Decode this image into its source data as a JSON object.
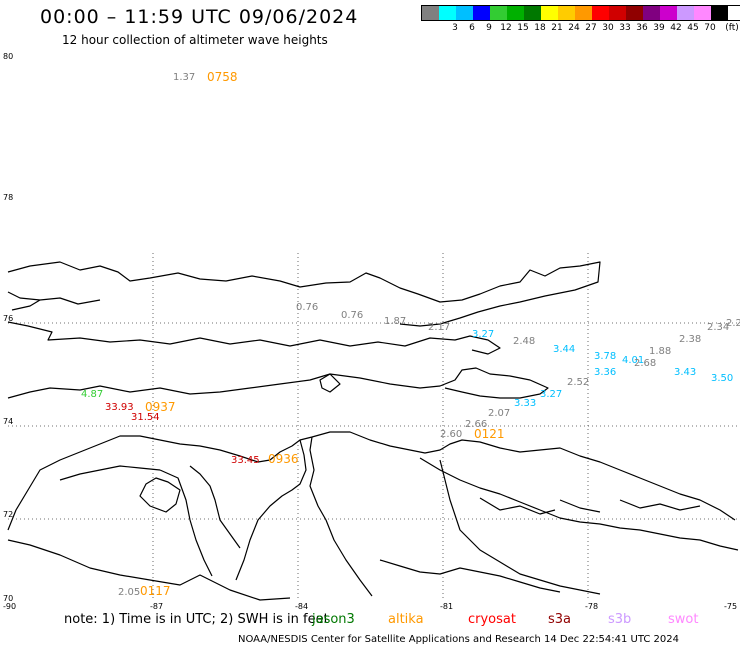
{
  "header": {
    "title": "00:00 – 11:59 UTC 09/06/2024",
    "subtitle": "12 hour collection of altimeter wave heights"
  },
  "legend": {
    "unit": "(ft)",
    "items": [
      {
        "label": "",
        "color": "#808080"
      },
      {
        "label": "3",
        "color": "#00ffff"
      },
      {
        "label": "6",
        "color": "#00bfff"
      },
      {
        "label": "9",
        "color": "#0000ff"
      },
      {
        "label": "12",
        "color": "#33cc33"
      },
      {
        "label": "15",
        "color": "#00b000"
      },
      {
        "label": "18",
        "color": "#007800"
      },
      {
        "label": "21",
        "color": "#ffff00"
      },
      {
        "label": "24",
        "color": "#ffcc00"
      },
      {
        "label": "27",
        "color": "#ff9900"
      },
      {
        "label": "30",
        "color": "#ff0000"
      },
      {
        "label": "33",
        "color": "#d00000"
      },
      {
        "label": "36",
        "color": "#900000"
      },
      {
        "label": "39",
        "color": "#800080"
      },
      {
        "label": "42",
        "color": "#cc00cc"
      },
      {
        "label": "45",
        "color": "#cc99ff"
      },
      {
        "label": "70",
        "color": "#ff88ff"
      },
      {
        "label": "",
        "color": "#000000"
      }
    ]
  },
  "map": {
    "lat_labels": [
      "80",
      "78",
      "76",
      "74",
      "72",
      "70"
    ],
    "lon_labels": [
      "-90",
      "-87",
      "-84",
      "-81",
      "-78",
      "-75"
    ],
    "observations": [
      {
        "text": "1.37",
        "color": "#808080"
      },
      {
        "text": "0.76",
        "color": "#808080"
      },
      {
        "text": "0.76",
        "color": "#808080"
      },
      {
        "text": "1.87",
        "color": "#808080"
      },
      {
        "text": "2.17",
        "color": "#808080"
      },
      {
        "text": "3.27",
        "color": "#00bfff"
      },
      {
        "text": "2.48",
        "color": "#808080"
      },
      {
        "text": "3.44",
        "color": "#00bfff"
      },
      {
        "text": "3.78",
        "color": "#00bfff"
      },
      {
        "text": "4.01",
        "color": "#00bfff"
      },
      {
        "text": "1.88",
        "color": "#808080"
      },
      {
        "text": "2.38",
        "color": "#808080"
      },
      {
        "text": "2.34",
        "color": "#808080"
      },
      {
        "text": "2.2",
        "color": "#808080"
      },
      {
        "text": "3.36",
        "color": "#00bfff"
      },
      {
        "text": "2.68",
        "color": "#808080"
      },
      {
        "text": "3.43",
        "color": "#00bfff"
      },
      {
        "text": "3.50",
        "color": "#00bfff"
      },
      {
        "text": "2.52",
        "color": "#808080"
      },
      {
        "text": "3.27",
        "color": "#00bfff"
      },
      {
        "text": "3.33",
        "color": "#00bfff"
      },
      {
        "text": "2.07",
        "color": "#808080"
      },
      {
        "text": "2.66",
        "color": "#808080"
      },
      {
        "text": "2.60",
        "color": "#808080"
      },
      {
        "text": "4.87",
        "color": "#33cc33"
      },
      {
        "text": "33.93",
        "color": "#d00000"
      },
      {
        "text": "31.54",
        "color": "#d00000"
      },
      {
        "text": "33.45",
        "color": "#d00000"
      },
      {
        "text": "2.05",
        "color": "#808080"
      }
    ],
    "pass_times": [
      {
        "text": "0758",
        "color": "#ff9900"
      },
      {
        "text": "0937",
        "color": "#ff9900"
      },
      {
        "text": "0121",
        "color": "#ff9900"
      },
      {
        "text": "0936",
        "color": "#ff9900"
      },
      {
        "text": "0117",
        "color": "#ff9900"
      }
    ]
  },
  "note": "note: 1) Time is in UTC; 2) SWH is in feet",
  "satellites": [
    {
      "name": "jason3",
      "color": "#007800"
    },
    {
      "name": "altika",
      "color": "#ff9900"
    },
    {
      "name": "cryosat",
      "color": "#ff0000"
    },
    {
      "name": "s3a",
      "color": "#900000"
    },
    {
      "name": "s3b",
      "color": "#cc99ff"
    },
    {
      "name": "swot",
      "color": "#ff88ff"
    }
  ],
  "footer": "NOAA/NESDIS Center for Satellite Applications and Research    14 Dec 22:54:41 UTC 2024"
}
